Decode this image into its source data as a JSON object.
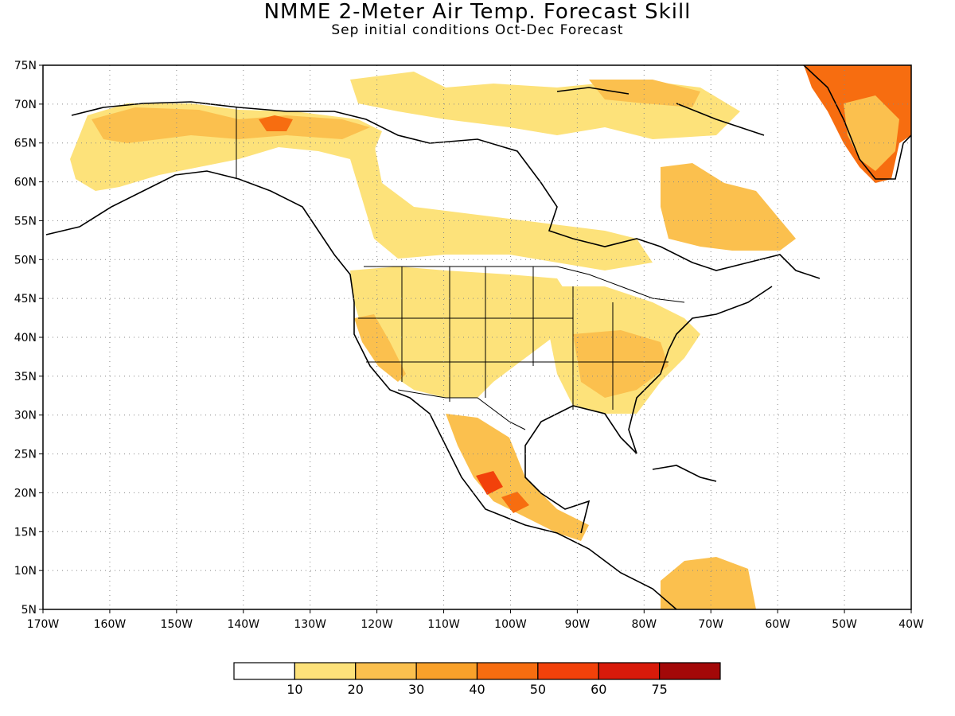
{
  "title": "NMME 2-Meter Air Temp. Forecast Skill",
  "subtitle": "Sep initial conditions  Oct-Dec Forecast",
  "lat_labels": [
    "75N",
    "70N",
    "65N",
    "60N",
    "55N",
    "50N",
    "45N",
    "40N",
    "35N",
    "30N",
    "25N",
    "20N",
    "15N",
    "10N",
    "5N"
  ],
  "lon_labels": [
    "170W",
    "160W",
    "150W",
    "140W",
    "130W",
    "120W",
    "110W",
    "100W",
    "90W",
    "80W",
    "70W",
    "60W",
    "50W",
    "40W"
  ],
  "colorbar": {
    "labels": [
      "10",
      "20",
      "30",
      "40",
      "50",
      "60",
      "75"
    ],
    "colors": [
      "#ffffff",
      "#fde27a",
      "#fbc04e",
      "#f9a12a",
      "#f76d10",
      "#f2410a",
      "#d81a0a",
      "#a30808"
    ]
  }
}
